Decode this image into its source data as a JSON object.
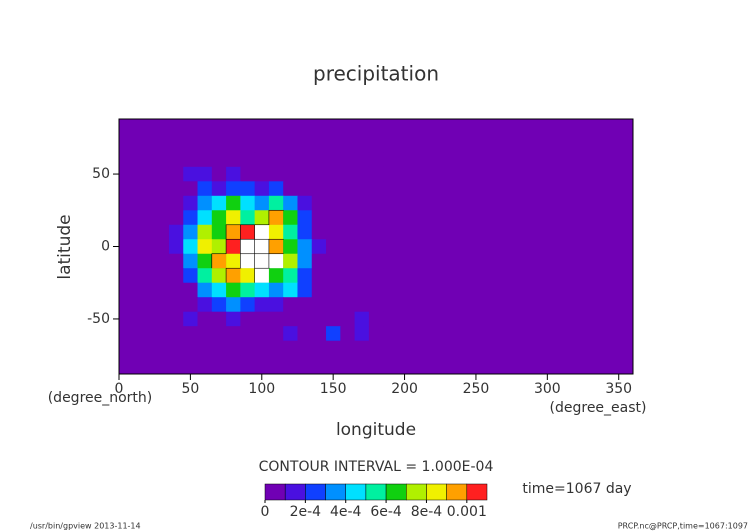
{
  "chart_data": {
    "type": "contour",
    "title": "precipitation",
    "xlabel": "longitude",
    "ylabel": "latitude",
    "xunit": "(degree_east)",
    "yunit": "(degree_north)",
    "xlim": [
      0,
      360
    ],
    "ylim": [
      -88,
      88
    ],
    "xticks": [
      0,
      50,
      100,
      150,
      200,
      250,
      300,
      350
    ],
    "yticks": [
      -50,
      0,
      50
    ],
    "x": [
      40,
      50,
      60,
      70,
      80,
      90,
      100,
      110,
      120,
      130,
      140,
      150,
      160,
      170,
      180
    ],
    "y": [
      60,
      50,
      40,
      30,
      20,
      10,
      0,
      -10,
      -20,
      -30,
      -40,
      -50,
      -60,
      -70
    ],
    "z": [
      [
        0,
        0,
        0,
        0,
        0,
        0,
        0,
        0,
        0,
        0,
        0,
        0,
        0,
        0,
        0
      ],
      [
        0,
        0.0001,
        0.0001,
        0,
        0.0001,
        0,
        0,
        0,
        0,
        0,
        0,
        0,
        0,
        0,
        0
      ],
      [
        0,
        0,
        0.0002,
        0.0001,
        0.0002,
        0.0002,
        0.0001,
        0.0002,
        0,
        0,
        0,
        0,
        0,
        0,
        0
      ],
      [
        0,
        0.0001,
        0.0003,
        0.0004,
        0.0006,
        0.0004,
        0.0003,
        0.0005,
        0.0003,
        0.0001,
        0,
        0,
        0,
        0,
        0
      ],
      [
        0,
        0.0002,
        0.0004,
        0.0006,
        0.0008,
        0.0005,
        0.0007,
        0.0009,
        0.0006,
        0.0002,
        0,
        0,
        0,
        0,
        0
      ],
      [
        0.0001,
        0.0003,
        0.0007,
        0.0006,
        0.0009,
        0.001,
        0.0012,
        0.0008,
        0.0005,
        0.0002,
        0,
        0,
        0,
        0,
        0
      ],
      [
        0.0001,
        0.0004,
        0.0008,
        0.0007,
        0.001,
        0.0012,
        0.0013,
        0.0009,
        0.0006,
        0.0003,
        0.0001,
        0,
        0,
        0,
        0
      ],
      [
        0,
        0.0003,
        0.0006,
        0.0009,
        0.0008,
        0.0011,
        0.0014,
        0.0012,
        0.0007,
        0.0003,
        0,
        0,
        0,
        0,
        0
      ],
      [
        0,
        0.0002,
        0.0005,
        0.0007,
        0.0009,
        0.0008,
        0.0011,
        0.0006,
        0.0005,
        0.0002,
        0,
        0,
        0,
        0,
        0
      ],
      [
        0,
        0,
        0.0003,
        0.0004,
        0.0006,
        0.0005,
        0.0004,
        0.0003,
        0.0004,
        0.0002,
        0,
        0,
        0,
        0,
        0
      ],
      [
        0,
        0,
        0.0001,
        0.0002,
        0.0003,
        0.0002,
        0.0001,
        0.0001,
        0,
        0,
        0,
        0,
        0,
        0,
        0
      ],
      [
        0,
        0.0001,
        0,
        0,
        0.0001,
        0,
        0,
        0,
        0,
        0,
        0,
        0,
        0,
        0.0001,
        0
      ],
      [
        0,
        0,
        0,
        0,
        0,
        0,
        0,
        0,
        0.0001,
        0,
        0,
        0.0002,
        0,
        0.0001,
        0
      ],
      [
        0,
        0,
        0,
        0,
        0,
        0,
        0,
        0,
        0,
        0,
        0,
        0,
        0,
        0,
        0
      ]
    ],
    "colors": [
      "#7000b4",
      "#4a10e0",
      "#1040ff",
      "#0090ff",
      "#00e0ff",
      "#00f0a0",
      "#10d010",
      "#b0f000",
      "#f0f000",
      "#ffa000",
      "#ff2020"
    ],
    "above_color": "#ffffff",
    "colorbar_lim": [
      0,
      0.0011
    ],
    "colorbar_ticks": [
      0,
      {
        "value": 0.0002,
        "label": "2e-4"
      },
      {
        "value": 0.0004,
        "label": "4e-4"
      },
      {
        "value": 0.0006,
        "label": "6e-4"
      },
      {
        "value": 0.0008,
        "label": "8e-4"
      },
      0.001
    ],
    "contour_interval": "CONTOUR INTERVAL = 1.000E-04",
    "time_label": "time=1067 day",
    "footer_left": "/usr/bin/gpview  2013-11-14",
    "footer_right": "PRCP.nc@PRCP,time=1067:1097"
  }
}
